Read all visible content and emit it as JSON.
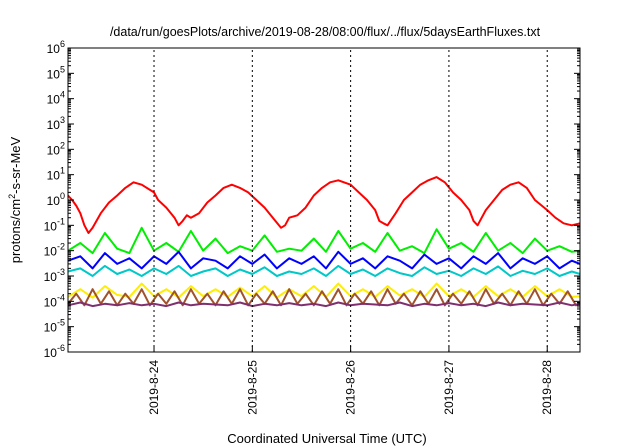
{
  "chart_data": {
    "type": "line",
    "title": "/data/run/goesPlots/archive/2019-08-28/08:00/flux/../flux/5daysEarthFluxes.txt",
    "xlabel": "Coordinated Universal Time (UTC)",
    "ylabel": "protons/cm2-s-sr-MeV",
    "ylabel_parts": {
      "pre": "protons/cm",
      "sup": "2",
      "post": "-s-sr-MeV"
    },
    "y_scale": "log",
    "ylim": [
      1e-06,
      1000000.0
    ],
    "y_ticks": [
      {
        "exp": "-6",
        "value": 1e-06
      },
      {
        "exp": "-5",
        "value": 1e-05
      },
      {
        "exp": "-4",
        "value": 0.0001
      },
      {
        "exp": "-3",
        "value": 0.001
      },
      {
        "exp": "-2",
        "value": 0.01
      },
      {
        "exp": "-1",
        "value": 0.1
      },
      {
        "exp": "0",
        "value": 1.0
      },
      {
        "exp": "1",
        "value": 10.0
      },
      {
        "exp": "2",
        "value": 100.0
      },
      {
        "exp": "3",
        "value": 1000.0
      },
      {
        "exp": "4",
        "value": 10000.0
      },
      {
        "exp": "5",
        "value": 100000.0
      },
      {
        "exp": "6",
        "value": 1000000.0
      }
    ],
    "y_tick_base": "10",
    "xlim": [
      "2019-08-23 03:00",
      "2019-08-28 08:00"
    ],
    "x_ticks": [
      "2019-8-24",
      "2019-8-25",
      "2019-8-26",
      "2019-8-27",
      "2019-8-28"
    ],
    "x_tick_dates": [
      "2019-08-24 00:00",
      "2019-08-25 00:00",
      "2019-08-26 00:00",
      "2019-08-27 00:00",
      "2019-08-28 00:00"
    ],
    "grid": false,
    "legend": "none",
    "series": [
      {
        "color": "#ff0000",
        "x": [
          "2019-08-23 03:00",
          "2019-08-23 04:00",
          "2019-08-23 05:00",
          "2019-08-23 06:00",
          "2019-08-23 07:00",
          "2019-08-23 08:00",
          "2019-08-23 09:00",
          "2019-08-23 11:00",
          "2019-08-23 13:00",
          "2019-08-23 15:00",
          "2019-08-23 17:00",
          "2019-08-23 19:00",
          "2019-08-23 21:00",
          "2019-08-24 00:00",
          "2019-08-24 01:00",
          "2019-08-24 03:00",
          "2019-08-24 05:00",
          "2019-08-24 06:00",
          "2019-08-24 07:00",
          "2019-08-24 08:00",
          "2019-08-24 09:00",
          "2019-08-24 11:00",
          "2019-08-24 13:00",
          "2019-08-24 15:00",
          "2019-08-24 17:00",
          "2019-08-24 19:00",
          "2019-08-24 21:00",
          "2019-08-24 23:00",
          "2019-08-25 01:00",
          "2019-08-25 03:00",
          "2019-08-25 05:00",
          "2019-08-25 07:00",
          "2019-08-25 08:00",
          "2019-08-25 09:00",
          "2019-08-25 11:00",
          "2019-08-25 13:00",
          "2019-08-25 15:00",
          "2019-08-25 17:00",
          "2019-08-25 19:00",
          "2019-08-25 21:00",
          "2019-08-26 00:00",
          "2019-08-26 02:00",
          "2019-08-26 04:00",
          "2019-08-26 06:00",
          "2019-08-26 07:00",
          "2019-08-26 08:00",
          "2019-08-26 09:00",
          "2019-08-26 11:00",
          "2019-08-26 13:00",
          "2019-08-26 15:00",
          "2019-08-26 17:00",
          "2019-08-26 19:00",
          "2019-08-26 21:00",
          "2019-08-26 23:00",
          "2019-08-27 01:00",
          "2019-08-27 03:00",
          "2019-08-27 05:00",
          "2019-08-27 06:00",
          "2019-08-27 07:00",
          "2019-08-27 08:00",
          "2019-08-27 09:00",
          "2019-08-27 11:00",
          "2019-08-27 13:00",
          "2019-08-27 15:00",
          "2019-08-27 17:00",
          "2019-08-27 19:00",
          "2019-08-27 21:00",
          "2019-08-28 00:00",
          "2019-08-28 02:00",
          "2019-08-28 04:00",
          "2019-08-28 06:00",
          "2019-08-28 08:00"
        ],
        "y": [
          1.5,
          1.0,
          0.6,
          0.3,
          0.1,
          0.05,
          0.08,
          0.3,
          0.8,
          1.5,
          3,
          5,
          4,
          2,
          1,
          0.5,
          0.2,
          0.1,
          0.15,
          0.25,
          0.2,
          0.3,
          0.8,
          1.5,
          3,
          4,
          3,
          2,
          1,
          0.5,
          0.2,
          0.08,
          0.1,
          0.2,
          0.25,
          0.5,
          1.5,
          3,
          5,
          6,
          4,
          2,
          1,
          0.4,
          0.15,
          0.12,
          0.1,
          0.3,
          1,
          2,
          4,
          6,
          8,
          5,
          2,
          1,
          0.4,
          0.15,
          0.1,
          0.2,
          0.4,
          1,
          2.5,
          4,
          5,
          3,
          1,
          0.4,
          0.2,
          0.12,
          0.1,
          0.12
        ]
      },
      {
        "color": "#00ee00",
        "x": [
          "2019-08-23 03:00",
          "2019-08-23 06:00",
          "2019-08-23 09:00",
          "2019-08-23 12:00",
          "2019-08-23 15:00",
          "2019-08-23 18:00",
          "2019-08-23 21:00",
          "2019-08-24 00:00",
          "2019-08-24 03:00",
          "2019-08-24 06:00",
          "2019-08-24 09:00",
          "2019-08-24 12:00",
          "2019-08-24 15:00",
          "2019-08-24 18:00",
          "2019-08-24 21:00",
          "2019-08-25 00:00",
          "2019-08-25 03:00",
          "2019-08-25 06:00",
          "2019-08-25 09:00",
          "2019-08-25 12:00",
          "2019-08-25 15:00",
          "2019-08-25 18:00",
          "2019-08-25 21:00",
          "2019-08-26 00:00",
          "2019-08-26 03:00",
          "2019-08-26 06:00",
          "2019-08-26 09:00",
          "2019-08-26 12:00",
          "2019-08-26 15:00",
          "2019-08-26 18:00",
          "2019-08-26 21:00",
          "2019-08-27 00:00",
          "2019-08-27 03:00",
          "2019-08-27 06:00",
          "2019-08-27 09:00",
          "2019-08-27 12:00",
          "2019-08-27 15:00",
          "2019-08-27 18:00",
          "2019-08-27 21:00",
          "2019-08-28 00:00",
          "2019-08-28 03:00",
          "2019-08-28 06:00",
          "2019-08-28 08:00"
        ],
        "y": [
          0.01,
          0.02,
          0.008,
          0.05,
          0.012,
          0.008,
          0.08,
          0.01,
          0.02,
          0.009,
          0.06,
          0.01,
          0.03,
          0.008,
          0.015,
          0.01,
          0.04,
          0.009,
          0.012,
          0.01,
          0.03,
          0.009,
          0.06,
          0.012,
          0.02,
          0.009,
          0.05,
          0.01,
          0.015,
          0.008,
          0.07,
          0.012,
          0.02,
          0.009,
          0.05,
          0.01,
          0.02,
          0.008,
          0.03,
          0.01,
          0.015,
          0.009,
          0.01
        ]
      },
      {
        "color": "#0000ff",
        "x": [
          "2019-08-23 03:00",
          "2019-08-23 06:00",
          "2019-08-23 09:00",
          "2019-08-23 12:00",
          "2019-08-23 15:00",
          "2019-08-23 18:00",
          "2019-08-23 21:00",
          "2019-08-24 00:00",
          "2019-08-24 03:00",
          "2019-08-24 06:00",
          "2019-08-24 09:00",
          "2019-08-24 12:00",
          "2019-08-24 15:00",
          "2019-08-24 18:00",
          "2019-08-24 21:00",
          "2019-08-25 00:00",
          "2019-08-25 03:00",
          "2019-08-25 06:00",
          "2019-08-25 09:00",
          "2019-08-25 12:00",
          "2019-08-25 15:00",
          "2019-08-25 18:00",
          "2019-08-25 21:00",
          "2019-08-26 00:00",
          "2019-08-26 03:00",
          "2019-08-26 06:00",
          "2019-08-26 09:00",
          "2019-08-26 12:00",
          "2019-08-26 15:00",
          "2019-08-26 18:00",
          "2019-08-26 21:00",
          "2019-08-27 00:00",
          "2019-08-27 03:00",
          "2019-08-27 06:00",
          "2019-08-27 09:00",
          "2019-08-27 12:00",
          "2019-08-27 15:00",
          "2019-08-27 18:00",
          "2019-08-27 21:00",
          "2019-08-28 00:00",
          "2019-08-28 03:00",
          "2019-08-28 06:00",
          "2019-08-28 08:00"
        ],
        "y": [
          0.004,
          0.006,
          0.002,
          0.008,
          0.003,
          0.005,
          0.002,
          0.006,
          0.003,
          0.009,
          0.002,
          0.005,
          0.004,
          0.002,
          0.006,
          0.003,
          0.007,
          0.002,
          0.005,
          0.003,
          0.006,
          0.002,
          0.009,
          0.003,
          0.005,
          0.002,
          0.006,
          0.004,
          0.002,
          0.007,
          0.003,
          0.005,
          0.002,
          0.006,
          0.003,
          0.008,
          0.002,
          0.005,
          0.003,
          0.006,
          0.002,
          0.004,
          0.003
        ]
      },
      {
        "color": "#00c8c8",
        "x": [
          "2019-08-23 03:00",
          "2019-08-23 06:00",
          "2019-08-23 09:00",
          "2019-08-23 12:00",
          "2019-08-23 15:00",
          "2019-08-23 18:00",
          "2019-08-23 21:00",
          "2019-08-24 00:00",
          "2019-08-24 03:00",
          "2019-08-24 06:00",
          "2019-08-24 09:00",
          "2019-08-24 12:00",
          "2019-08-24 15:00",
          "2019-08-24 18:00",
          "2019-08-24 21:00",
          "2019-08-25 00:00",
          "2019-08-25 03:00",
          "2019-08-25 06:00",
          "2019-08-25 09:00",
          "2019-08-25 12:00",
          "2019-08-25 15:00",
          "2019-08-25 18:00",
          "2019-08-25 21:00",
          "2019-08-26 00:00",
          "2019-08-26 03:00",
          "2019-08-26 06:00",
          "2019-08-26 09:00",
          "2019-08-26 12:00",
          "2019-08-26 15:00",
          "2019-08-26 18:00",
          "2019-08-26 21:00",
          "2019-08-27 00:00",
          "2019-08-27 03:00",
          "2019-08-27 06:00",
          "2019-08-27 09:00",
          "2019-08-27 12:00",
          "2019-08-27 15:00",
          "2019-08-27 18:00",
          "2019-08-27 21:00",
          "2019-08-28 00:00",
          "2019-08-28 03:00",
          "2019-08-28 06:00",
          "2019-08-28 08:00"
        ],
        "y": [
          0.0015,
          0.002,
          0.001,
          0.0025,
          0.0012,
          0.0018,
          0.001,
          0.002,
          0.0012,
          0.0025,
          0.001,
          0.0015,
          0.002,
          0.001,
          0.0018,
          0.0012,
          0.0022,
          0.001,
          0.0015,
          0.0012,
          0.002,
          0.001,
          0.0025,
          0.0012,
          0.0018,
          0.001,
          0.002,
          0.0013,
          0.001,
          0.0022,
          0.0012,
          0.0016,
          0.001,
          0.002,
          0.0012,
          0.0024,
          0.001,
          0.0016,
          0.0012,
          0.002,
          0.001,
          0.0015,
          0.0012
        ]
      },
      {
        "color": "#ffee00",
        "x": [
          "2019-08-23 03:00",
          "2019-08-23 06:00",
          "2019-08-23 09:00",
          "2019-08-23 12:00",
          "2019-08-23 15:00",
          "2019-08-23 18:00",
          "2019-08-23 21:00",
          "2019-08-24 00:00",
          "2019-08-24 03:00",
          "2019-08-24 06:00",
          "2019-08-24 09:00",
          "2019-08-24 12:00",
          "2019-08-24 15:00",
          "2019-08-24 18:00",
          "2019-08-24 21:00",
          "2019-08-25 00:00",
          "2019-08-25 03:00",
          "2019-08-25 06:00",
          "2019-08-25 09:00",
          "2019-08-25 12:00",
          "2019-08-25 15:00",
          "2019-08-25 18:00",
          "2019-08-25 21:00",
          "2019-08-26 00:00",
          "2019-08-26 03:00",
          "2019-08-26 06:00",
          "2019-08-26 09:00",
          "2019-08-26 12:00",
          "2019-08-26 15:00",
          "2019-08-26 18:00",
          "2019-08-26 21:00",
          "2019-08-27 00:00",
          "2019-08-27 03:00",
          "2019-08-27 06:00",
          "2019-08-27 09:00",
          "2019-08-27 12:00",
          "2019-08-27 15:00",
          "2019-08-27 18:00",
          "2019-08-27 21:00",
          "2019-08-28 00:00",
          "2019-08-28 03:00",
          "2019-08-28 06:00",
          "2019-08-28 08:00"
        ],
        "y": [
          0.00015,
          0.0003,
          0.00014,
          0.0004,
          0.00018,
          0.00015,
          0.0005,
          0.00016,
          0.0003,
          0.00014,
          0.0004,
          0.00016,
          0.0003,
          0.00015,
          0.00035,
          0.00016,
          0.0004,
          0.00014,
          0.0003,
          0.00016,
          0.0004,
          0.00015,
          0.0005,
          0.00016,
          0.0003,
          0.00015,
          0.0004,
          0.00017,
          0.0003,
          0.00015,
          0.0005,
          0.00016,
          0.0003,
          0.00015,
          0.0004,
          0.00016,
          0.0003,
          0.00015,
          0.0004,
          0.00016,
          0.0003,
          0.00015,
          0.00016
        ]
      },
      {
        "color": "#a0522d",
        "x": [
          "2019-08-23 03:00",
          "2019-08-23 05:00",
          "2019-08-23 07:00",
          "2019-08-23 09:00",
          "2019-08-23 11:00",
          "2019-08-23 13:00",
          "2019-08-23 15:00",
          "2019-08-23 17:00",
          "2019-08-23 19:00",
          "2019-08-23 21:00",
          "2019-08-23 23:00",
          "2019-08-24 01:00",
          "2019-08-24 03:00",
          "2019-08-24 05:00",
          "2019-08-24 07:00",
          "2019-08-24 09:00",
          "2019-08-24 11:00",
          "2019-08-24 13:00",
          "2019-08-24 15:00",
          "2019-08-24 17:00",
          "2019-08-24 19:00",
          "2019-08-24 21:00",
          "2019-08-24 23:00",
          "2019-08-25 01:00",
          "2019-08-25 03:00",
          "2019-08-25 05:00",
          "2019-08-25 07:00",
          "2019-08-25 09:00",
          "2019-08-25 11:00",
          "2019-08-25 13:00",
          "2019-08-25 15:00",
          "2019-08-25 17:00",
          "2019-08-25 19:00",
          "2019-08-25 21:00",
          "2019-08-25 23:00",
          "2019-08-26 01:00",
          "2019-08-26 03:00",
          "2019-08-26 05:00",
          "2019-08-26 07:00",
          "2019-08-26 09:00",
          "2019-08-26 11:00",
          "2019-08-26 13:00",
          "2019-08-26 15:00",
          "2019-08-26 17:00",
          "2019-08-26 19:00",
          "2019-08-26 21:00",
          "2019-08-26 23:00",
          "2019-08-27 01:00",
          "2019-08-27 03:00",
          "2019-08-27 05:00",
          "2019-08-27 07:00",
          "2019-08-27 09:00",
          "2019-08-27 11:00",
          "2019-08-27 13:00",
          "2019-08-27 15:00",
          "2019-08-27 17:00",
          "2019-08-27 19:00",
          "2019-08-27 21:00",
          "2019-08-27 23:00",
          "2019-08-28 01:00",
          "2019-08-28 03:00",
          "2019-08-28 05:00",
          "2019-08-28 07:00",
          "2019-08-28 08:00"
        ],
        "y": [
          8e-05,
          0.0002,
          7e-05,
          0.0003,
          8e-05,
          0.00025,
          7e-05,
          0.0002,
          8e-05,
          0.0003,
          7e-05,
          0.0002,
          8e-05,
          0.00025,
          7e-05,
          0.0003,
          8e-05,
          0.0002,
          7e-05,
          0.00025,
          8e-05,
          0.0003,
          7e-05,
          0.0002,
          8e-05,
          0.00025,
          7e-05,
          0.0003,
          8e-05,
          0.0002,
          7e-05,
          0.00025,
          8e-05,
          0.0003,
          7e-05,
          0.0002,
          8e-05,
          0.00025,
          7e-05,
          0.0003,
          8e-05,
          0.0002,
          7e-05,
          0.00025,
          8e-05,
          0.0003,
          7e-05,
          0.0002,
          8e-05,
          0.00025,
          7e-05,
          0.0003,
          8e-05,
          0.0002,
          7e-05,
          0.00025,
          8e-05,
          0.0003,
          7e-05,
          0.0002,
          8e-05,
          0.00025,
          7e-05,
          8e-05
        ]
      },
      {
        "color": "#7f2f6f",
        "x": [
          "2019-08-23 03:00",
          "2019-08-23 06:00",
          "2019-08-23 09:00",
          "2019-08-23 12:00",
          "2019-08-23 15:00",
          "2019-08-23 18:00",
          "2019-08-23 21:00",
          "2019-08-24 00:00",
          "2019-08-24 03:00",
          "2019-08-24 06:00",
          "2019-08-24 09:00",
          "2019-08-24 12:00",
          "2019-08-24 15:00",
          "2019-08-24 18:00",
          "2019-08-24 21:00",
          "2019-08-25 00:00",
          "2019-08-25 03:00",
          "2019-08-25 06:00",
          "2019-08-25 09:00",
          "2019-08-25 12:00",
          "2019-08-25 15:00",
          "2019-08-25 18:00",
          "2019-08-25 21:00",
          "2019-08-26 00:00",
          "2019-08-26 03:00",
          "2019-08-26 06:00",
          "2019-08-26 09:00",
          "2019-08-26 12:00",
          "2019-08-26 15:00",
          "2019-08-26 18:00",
          "2019-08-26 21:00",
          "2019-08-27 00:00",
          "2019-08-27 03:00",
          "2019-08-27 06:00",
          "2019-08-27 09:00",
          "2019-08-27 12:00",
          "2019-08-27 15:00",
          "2019-08-27 18:00",
          "2019-08-27 21:00",
          "2019-08-28 00:00",
          "2019-08-28 03:00",
          "2019-08-28 06:00",
          "2019-08-28 08:00"
        ],
        "y": [
          7e-05,
          9e-05,
          6.5e-05,
          8e-05,
          7e-05,
          8.5e-05,
          7e-05,
          8e-05,
          6.5e-05,
          9e-05,
          7e-05,
          8e-05,
          7.5e-05,
          7e-05,
          9e-05,
          6.5e-05,
          8e-05,
          7e-05,
          8.5e-05,
          7e-05,
          8e-05,
          6.5e-05,
          9e-05,
          7e-05,
          8e-05,
          7.5e-05,
          7e-05,
          9e-05,
          6.5e-05,
          8e-05,
          7e-05,
          8.5e-05,
          7e-05,
          8e-05,
          6.5e-05,
          9e-05,
          7e-05,
          8e-05,
          7.5e-05,
          7e-05,
          9e-05,
          7e-05,
          8e-05
        ]
      }
    ]
  }
}
